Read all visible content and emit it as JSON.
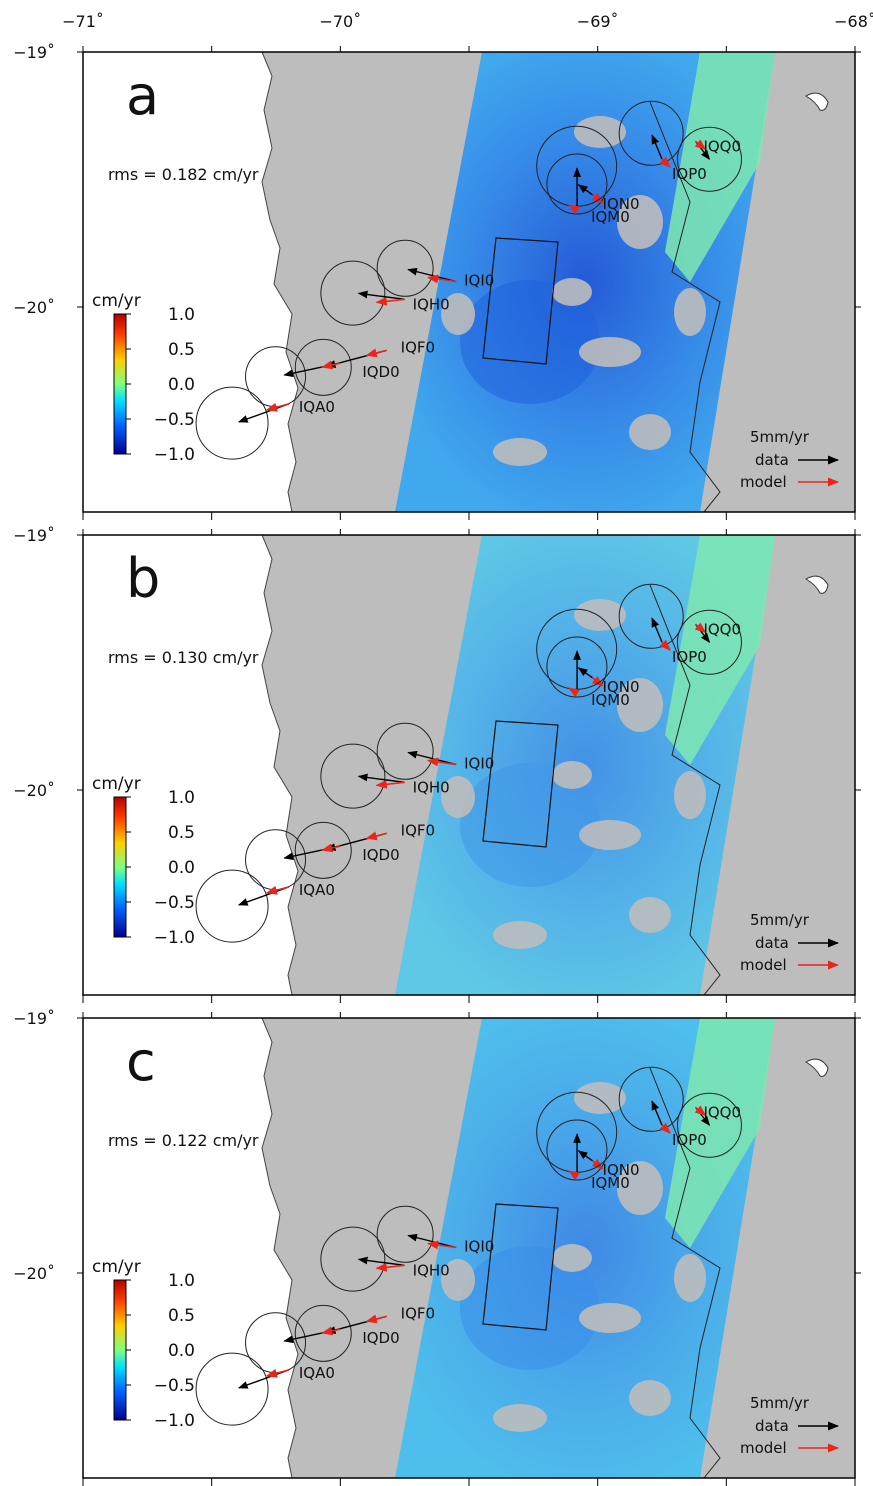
{
  "axes": {
    "lon_ticks": [
      {
        "value": -71,
        "label": "−71˚"
      },
      {
        "value": -70,
        "label": "−70˚"
      },
      {
        "value": -69,
        "label": "−69˚"
      },
      {
        "value": -68,
        "label": "−68˚"
      }
    ],
    "lat_ticks": [
      {
        "value": -19,
        "label": "−19˚"
      },
      {
        "value": -20,
        "label": "−20˚"
      }
    ]
  },
  "colorbar": {
    "unit": "cm/yr",
    "labels": [
      "1.0",
      "0.5",
      "0.0",
      "−0.5",
      "−1.0"
    ],
    "colors": [
      "#b30000",
      "#ff4000",
      "#ffd000",
      "#80ff80",
      "#00e0ff",
      "#0060ff",
      "#000090"
    ]
  },
  "legend": {
    "scale": "5mm/yr",
    "data_label": "data",
    "model_label": "model",
    "data_color": "#000000",
    "model_color": "#e8261c"
  },
  "colors": {
    "land": "#bdbdbd",
    "ocean": "#ffffff",
    "insar_a": "#3aa8f0",
    "insar_b": "#5ac8e8",
    "insar_c": "#48bfee",
    "insar_deep_a": "#1f62dd",
    "insar_deep_b": "#3f97e8",
    "insar_deep_c": "#3b8ee9",
    "insar_east": "#7ee8b0"
  },
  "panels": [
    {
      "id": "a",
      "letter": "a",
      "rms": "rms = 0.182 cm/yr"
    },
    {
      "id": "b",
      "letter": "b",
      "rms": "rms = 0.130 cm/yr"
    },
    {
      "id": "c",
      "letter": "c",
      "rms": "rms = 0.122 cm/yr"
    }
  ],
  "stations": [
    {
      "name": "IQQ0",
      "lon": -68.62,
      "lat": -19.35
    },
    {
      "name": "IQP0",
      "lon": -68.75,
      "lat": -19.42
    },
    {
      "name": "IQN0",
      "lon": -69.02,
      "lat": -19.56
    },
    {
      "name": "IQM0",
      "lon": -69.08,
      "lat": -19.62
    },
    {
      "name": "IQI0",
      "lon": -69.55,
      "lat": -19.9
    },
    {
      "name": "IQH0",
      "lon": -69.75,
      "lat": -19.97
    },
    {
      "name": "IQF0",
      "lon": -69.82,
      "lat": -20.17
    },
    {
      "name": "IQD0",
      "lon": -70.0,
      "lat": -20.22
    },
    {
      "name": "IQA0",
      "lon": -70.2,
      "lat": -20.38
    }
  ]
}
